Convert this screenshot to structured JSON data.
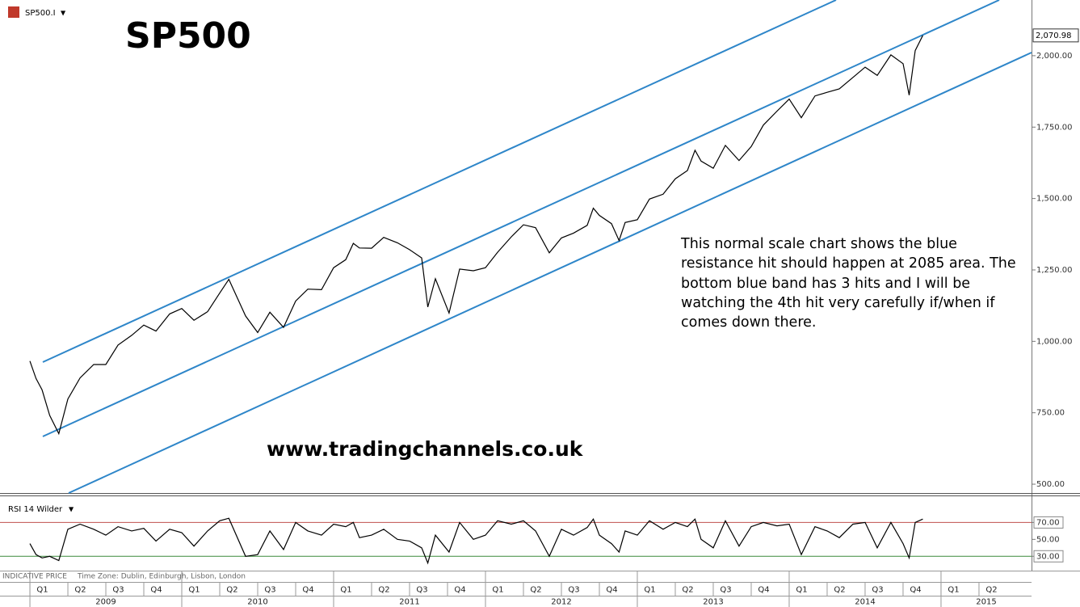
{
  "chart_data": [
    {
      "type": "line",
      "title": "SP500",
      "symbol": "SP500.I",
      "annotation": "This normal scale chart shows the blue resistance hit should happen at 2085 area. The bottom blue band has 3 hits and I will be watching the 4th hit very carefully if/when if comes down there.",
      "watermark": "www.tradingchannels.co.uk",
      "footer": "INDICATIVE PRICE",
      "timezone": "Time Zone: Dublin, Edinburgh, Lisbon, London",
      "color": "#000000",
      "x": [
        2009.0,
        2009.04,
        2009.08,
        2009.13,
        2009.19,
        2009.25,
        2009.33,
        2009.42,
        2009.5,
        2009.58,
        2009.67,
        2009.75,
        2009.83,
        2009.92,
        2010.0,
        2010.08,
        2010.17,
        2010.25,
        2010.31,
        2010.42,
        2010.5,
        2010.58,
        2010.67,
        2010.75,
        2010.83,
        2010.92,
        2011.0,
        2011.08,
        2011.13,
        2011.17,
        2011.25,
        2011.33,
        2011.42,
        2011.5,
        2011.58,
        2011.62,
        2011.67,
        2011.76,
        2011.83,
        2011.92,
        2012.0,
        2012.08,
        2012.17,
        2012.25,
        2012.33,
        2012.42,
        2012.5,
        2012.58,
        2012.67,
        2012.71,
        2012.75,
        2012.83,
        2012.88,
        2012.92,
        2013.0,
        2013.08,
        2013.17,
        2013.25,
        2013.33,
        2013.38,
        2013.42,
        2013.5,
        2013.58,
        2013.67,
        2013.75,
        2013.83,
        2013.92,
        2014.0,
        2014.08,
        2014.17,
        2014.25,
        2014.33,
        2014.42,
        2014.5,
        2014.58,
        2014.67,
        2014.75,
        2014.79,
        2014.83,
        2014.88
      ],
      "values": [
        931,
        870,
        830,
        741,
        677,
        798,
        872,
        919,
        919,
        987,
        1021,
        1057,
        1036,
        1096,
        1115,
        1074,
        1104,
        1169,
        1217,
        1089,
        1031,
        1102,
        1049,
        1141,
        1183,
        1181,
        1258,
        1286,
        1343,
        1327,
        1326,
        1364,
        1345,
        1321,
        1292,
        1120,
        1219,
        1099,
        1253,
        1247,
        1258,
        1312,
        1366,
        1408,
        1398,
        1310,
        1362,
        1379,
        1406,
        1466,
        1441,
        1412,
        1353,
        1416,
        1426,
        1498,
        1515,
        1569,
        1598,
        1669,
        1631,
        1606,
        1686,
        1633,
        1682,
        1757,
        1806,
        1848,
        1783,
        1859,
        1872,
        1884,
        1924,
        1960,
        1931,
        2003,
        1972,
        1862,
        2018,
        2070.98
      ],
      "last_value_label": "2,070.98",
      "xlim": [
        2008.803,
        2015.596
      ],
      "ylim": [
        469,
        2195
      ],
      "yticks": [
        {
          "value": 500,
          "label": "500.00"
        },
        {
          "value": 750,
          "label": "750.00"
        },
        {
          "value": 1000,
          "label": "1,000.00"
        },
        {
          "value": 1250,
          "label": "1,250.00"
        },
        {
          "value": 1500,
          "label": "1,500.00"
        },
        {
          "value": 1750,
          "label": "1,750.00"
        },
        {
          "value": 2000,
          "label": "2,000.00"
        }
      ],
      "xticks": [
        {
          "value": 2009.125,
          "label": "Q1"
        },
        {
          "value": 2009.375,
          "label": "Q2"
        },
        {
          "value": 2009.625,
          "label": "Q3"
        },
        {
          "value": 2009.875,
          "label": "Q4"
        },
        {
          "value": 2010.125,
          "label": "Q1"
        },
        {
          "value": 2010.375,
          "label": "Q2"
        },
        {
          "value": 2010.625,
          "label": "Q3"
        },
        {
          "value": 2010.875,
          "label": "Q4"
        },
        {
          "value": 2011.125,
          "label": "Q1"
        },
        {
          "value": 2011.375,
          "label": "Q2"
        },
        {
          "value": 2011.625,
          "label": "Q3"
        },
        {
          "value": 2011.875,
          "label": "Q4"
        },
        {
          "value": 2012.125,
          "label": "Q1"
        },
        {
          "value": 2012.375,
          "label": "Q2"
        },
        {
          "value": 2012.625,
          "label": "Q3"
        },
        {
          "value": 2012.875,
          "label": "Q4"
        },
        {
          "value": 2013.125,
          "label": "Q1"
        },
        {
          "value": 2013.375,
          "label": "Q2"
        },
        {
          "value": 2013.625,
          "label": "Q3"
        },
        {
          "value": 2013.875,
          "label": "Q4"
        },
        {
          "value": 2014.125,
          "label": "Q1"
        },
        {
          "value": 2014.375,
          "label": "Q2"
        },
        {
          "value": 2014.625,
          "label": "Q3"
        },
        {
          "value": 2014.875,
          "label": "Q4"
        },
        {
          "value": 2015.125,
          "label": "Q1"
        },
        {
          "value": 2015.375,
          "label": "Q2"
        }
      ],
      "year_ticks": [
        {
          "value": 2009.5,
          "label": "2009"
        },
        {
          "value": 2010.5,
          "label": "2010"
        },
        {
          "value": 2011.5,
          "label": "2011"
        },
        {
          "value": 2012.5,
          "label": "2012"
        },
        {
          "value": 2013.5,
          "label": "2013"
        },
        {
          "value": 2014.5,
          "label": "2014"
        },
        {
          "value": 2015.5,
          "label": "2015"
        }
      ]
    },
    {
      "type": "line",
      "title": "RSI 14 Wilder",
      "color": "#000000",
      "x": [
        2009.0,
        2009.04,
        2009.08,
        2009.13,
        2009.19,
        2009.25,
        2009.33,
        2009.42,
        2009.5,
        2009.58,
        2009.67,
        2009.75,
        2009.83,
        2009.92,
        2010.0,
        2010.08,
        2010.17,
        2010.25,
        2010.31,
        2010.42,
        2010.5,
        2010.58,
        2010.67,
        2010.75,
        2010.83,
        2010.92,
        2011.0,
        2011.08,
        2011.13,
        2011.17,
        2011.25,
        2011.33,
        2011.42,
        2011.5,
        2011.58,
        2011.62,
        2011.67,
        2011.76,
        2011.83,
        2011.92,
        2012.0,
        2012.08,
        2012.17,
        2012.25,
        2012.33,
        2012.42,
        2012.5,
        2012.58,
        2012.67,
        2012.71,
        2012.75,
        2012.83,
        2012.88,
        2012.92,
        2013.0,
        2013.08,
        2013.17,
        2013.25,
        2013.33,
        2013.38,
        2013.42,
        2013.5,
        2013.58,
        2013.67,
        2013.75,
        2013.83,
        2013.92,
        2014.0,
        2014.08,
        2014.17,
        2014.25,
        2014.33,
        2014.42,
        2014.5,
        2014.58,
        2014.67,
        2014.75,
        2014.79,
        2014.83,
        2014.88
      ],
      "values": [
        45,
        32,
        28,
        30,
        25,
        62,
        68,
        62,
        55,
        65,
        60,
        63,
        48,
        62,
        58,
        42,
        60,
        72,
        75,
        30,
        32,
        60,
        38,
        70,
        60,
        55,
        68,
        65,
        70,
        52,
        55,
        62,
        50,
        48,
        40,
        22,
        55,
        35,
        70,
        50,
        55,
        72,
        68,
        72,
        60,
        30,
        62,
        55,
        64,
        74,
        55,
        45,
        35,
        60,
        55,
        72,
        62,
        70,
        65,
        74,
        50,
        40,
        72,
        42,
        65,
        70,
        66,
        68,
        32,
        65,
        60,
        52,
        68,
        70,
        40,
        70,
        45,
        28,
        70,
        74
      ],
      "ylim": [
        14,
        100
      ],
      "yticks": [
        {
          "value": 30,
          "label": "30.00"
        },
        {
          "value": 50,
          "label": "50.00"
        },
        {
          "value": 70,
          "label": "70.00"
        }
      ],
      "level_lines": [
        {
          "value": 70,
          "color": "#c0504d"
        },
        {
          "value": 30,
          "color": "#3a8a3a"
        }
      ]
    }
  ]
}
